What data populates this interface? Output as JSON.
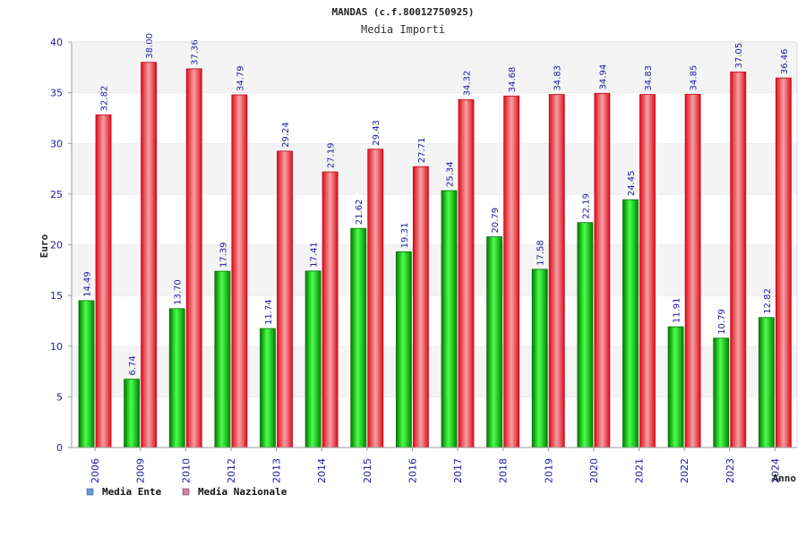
{
  "chart_data": {
    "type": "bar",
    "title": "MANDAS (c.f.80012750925)",
    "subtitle": "Media Importi",
    "xlabel": "Anno",
    "ylabel": "Euro",
    "ylim": [
      0,
      40
    ],
    "yticks": [
      "0",
      "5",
      "10",
      "15",
      "20",
      "25",
      "30",
      "35",
      "40"
    ],
    "grid": "horizontal bands",
    "legend_position": "bottom-left",
    "categories": [
      "2006",
      "2009",
      "2010",
      "2012",
      "2013",
      "2014",
      "2015",
      "2016",
      "2017",
      "2018",
      "2019",
      "2020",
      "2021",
      "2022",
      "2023",
      "2024"
    ],
    "series": [
      {
        "name": "Media Ente",
        "color": "#00b000",
        "legend_color": "#5a9be6",
        "values": [
          14.49,
          6.74,
          13.7,
          17.39,
          11.74,
          17.41,
          21.62,
          19.31,
          25.34,
          20.79,
          17.58,
          22.19,
          24.45,
          11.91,
          10.79,
          12.82
        ],
        "labels": [
          "14.49",
          "6.74",
          "13.70",
          "17.39",
          "11.74",
          "17.41",
          "21.62",
          "19.31",
          "25.34",
          "20.79",
          "17.58",
          "22.19",
          "24.45",
          "11.91",
          "10.79",
          "12.82"
        ]
      },
      {
        "name": "Media Nazionale",
        "color": "#e8101a",
        "legend_color": "#d77aa6",
        "values": [
          32.82,
          38.0,
          37.36,
          34.79,
          29.24,
          27.19,
          29.43,
          27.71,
          34.32,
          34.68,
          34.83,
          34.94,
          34.83,
          34.85,
          37.05,
          36.46
        ],
        "labels": [
          "32.82",
          "38.00",
          "37.36",
          "34.79",
          "29.24",
          "27.19",
          "29.43",
          "27.71",
          "34.32",
          "34.68",
          "34.83",
          "34.94",
          "34.83",
          "34.85",
          "37.05",
          "36.46"
        ]
      }
    ]
  }
}
